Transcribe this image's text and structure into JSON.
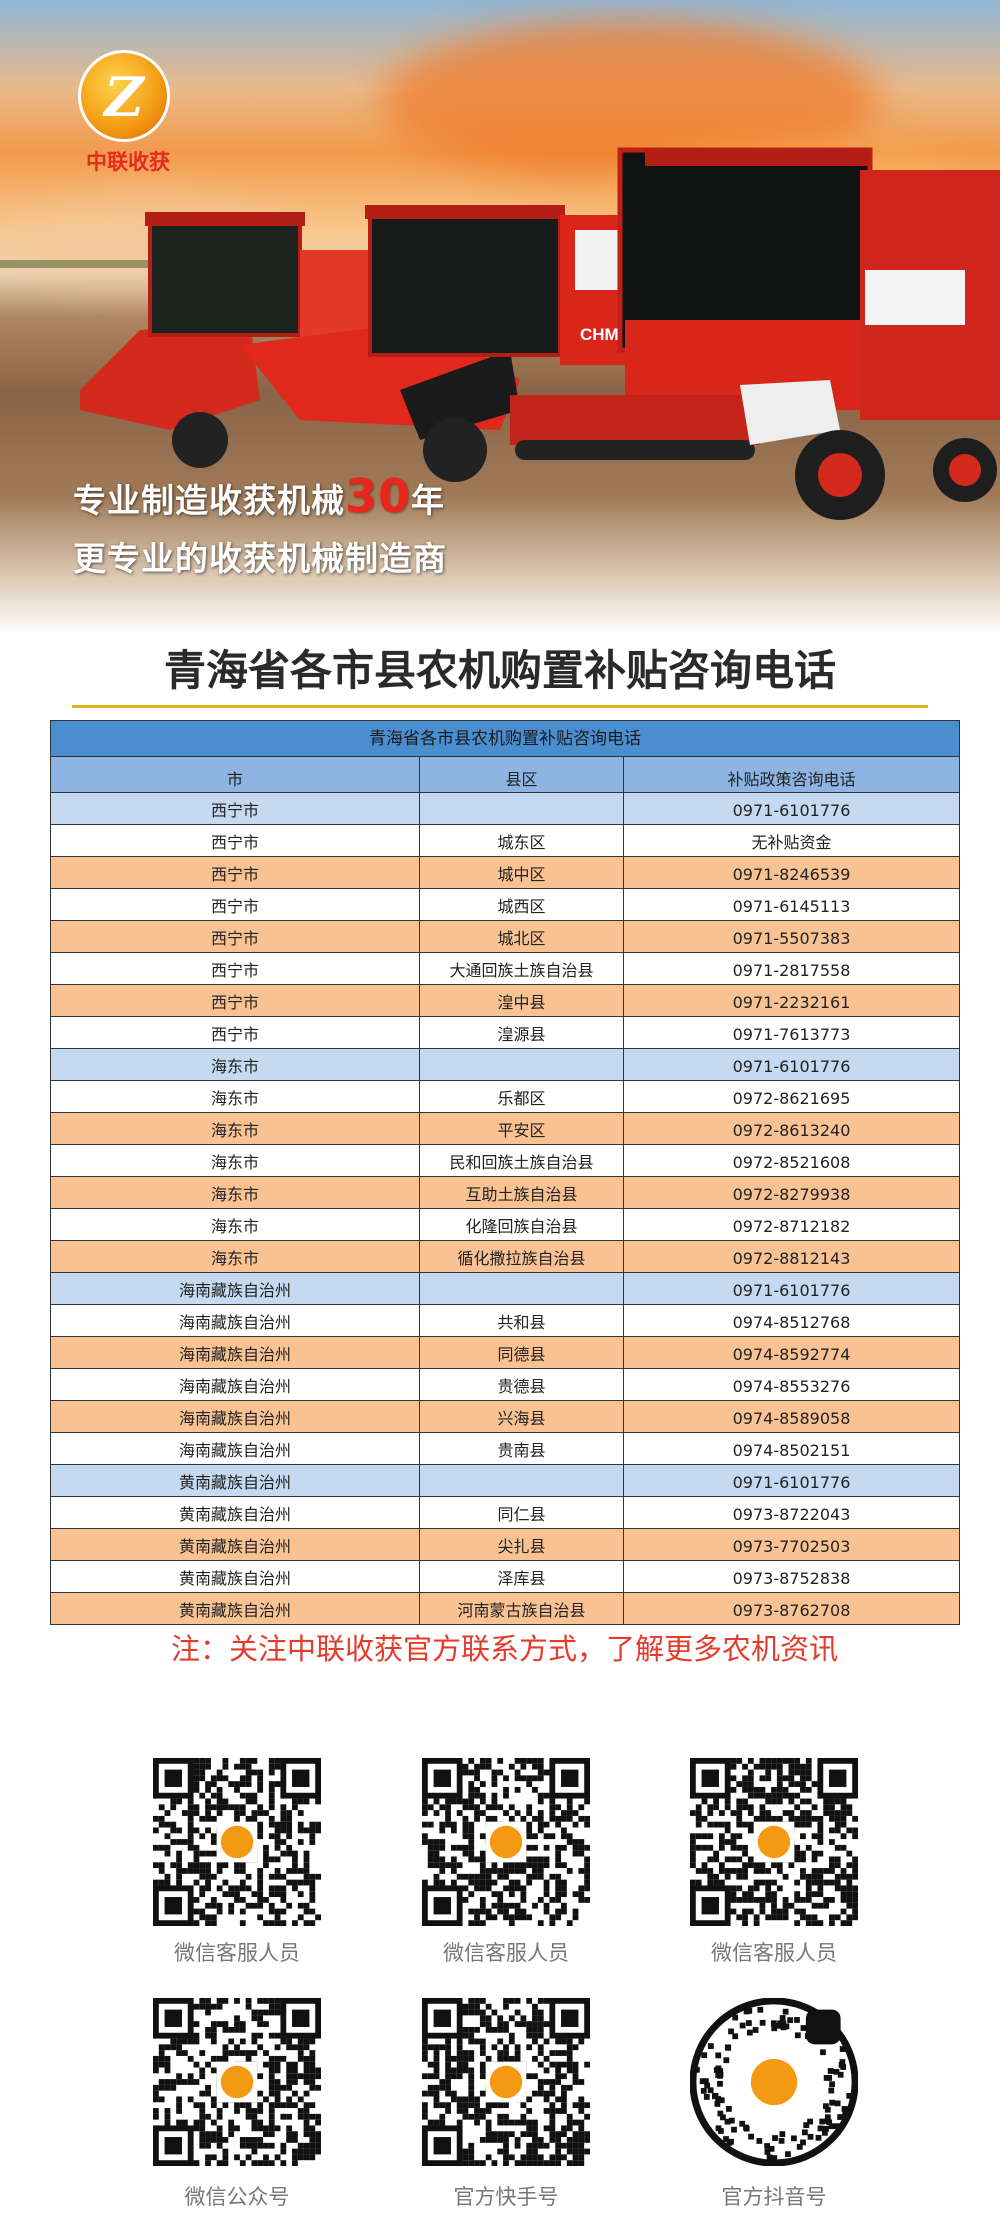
{
  "banner": {
    "logo_text": "中联收获",
    "slogan_line1_prefix": "专业制造收获机械",
    "slogan_line1_number": "30",
    "slogan_line1_suffix": "年",
    "slogan_line2": "更专业的收获机械制造商",
    "machine_label": "CHMC"
  },
  "page_title": "青海省各市县农机购置补贴咨询电话",
  "table": {
    "caption": "青海省各市县农机购置补贴咨询电话",
    "headers": [
      "市",
      "县区",
      "补贴政策咨询电话"
    ],
    "rows": [
      {
        "city": "西宁市",
        "county": "",
        "phone": "0971-6101776"
      },
      {
        "city": "西宁市",
        "county": "城东区",
        "phone": "无补贴资金"
      },
      {
        "city": "西宁市",
        "county": "城中区",
        "phone": "0971-8246539"
      },
      {
        "city": "西宁市",
        "county": "城西区",
        "phone": "0971-6145113"
      },
      {
        "city": "西宁市",
        "county": "城北区",
        "phone": "0971-5507383"
      },
      {
        "city": "西宁市",
        "county": "大通回族土族自治县",
        "phone": "0971-2817558"
      },
      {
        "city": "西宁市",
        "county": "湟中县",
        "phone": "0971-2232161"
      },
      {
        "city": "西宁市",
        "county": "湟源县",
        "phone": "0971-7613773"
      },
      {
        "city": "海东市",
        "county": "",
        "phone": "0971-6101776"
      },
      {
        "city": "海东市",
        "county": "乐都区",
        "phone": "0972-8621695"
      },
      {
        "city": "海东市",
        "county": "平安区",
        "phone": "0972-8613240"
      },
      {
        "city": "海东市",
        "county": "民和回族土族自治县",
        "phone": "0972-8521608"
      },
      {
        "city": "海东市",
        "county": "互助土族自治县",
        "phone": "0972-8279938"
      },
      {
        "city": "海东市",
        "county": "化隆回族自治县",
        "phone": "0972-8712182"
      },
      {
        "city": "海东市",
        "county": "循化撒拉族自治县",
        "phone": "0972-8812143"
      },
      {
        "city": "海南藏族自治州",
        "county": "",
        "phone": "0971-6101776"
      },
      {
        "city": "海南藏族自治州",
        "county": "共和县",
        "phone": "0974-8512768"
      },
      {
        "city": "海南藏族自治州",
        "county": "同德县",
        "phone": "0974-8592774"
      },
      {
        "city": "海南藏族自治州",
        "county": "贵德县",
        "phone": "0974-8553276"
      },
      {
        "city": "海南藏族自治州",
        "county": "兴海县",
        "phone": "0974-8589058"
      },
      {
        "city": "海南藏族自治州",
        "county": "贵南县",
        "phone": "0974-8502151"
      },
      {
        "city": "黄南藏族自治州",
        "county": "",
        "phone": "0971-6101776"
      },
      {
        "city": "黄南藏族自治州",
        "county": "同仁县",
        "phone": "0973-8722043"
      },
      {
        "city": "黄南藏族自治州",
        "county": "尖扎县",
        "phone": "0973-7702503"
      },
      {
        "city": "黄南藏族自治州",
        "county": "泽库县",
        "phone": "0973-8752838"
      },
      {
        "city": "黄南藏族自治州",
        "county": "河南蒙古族自治县",
        "phone": "0973-8762708"
      }
    ]
  },
  "note": "注：关注中联收获官方联系方式，了解更多农机资讯",
  "qr_codes": [
    {
      "label": "微信客服人员",
      "icon": "qr-code-icon"
    },
    {
      "label": "微信客服人员",
      "icon": "qr-code-icon"
    },
    {
      "label": "微信客服人员",
      "icon": "qr-code-icon"
    },
    {
      "label": "微信公众号",
      "icon": "qr-code-icon"
    },
    {
      "label": "官方快手号",
      "icon": "qr-code-icon"
    },
    {
      "label": "官方抖音号",
      "icon": "douyin-code-icon"
    }
  ],
  "colors": {
    "caption_bg": "#4a8ed0",
    "header_bg": "#8db4e2",
    "summary_row": "#c5d9f1",
    "alt_row": "#f8c293",
    "note_red": "#e53b2b",
    "accent_gold": "#e7b21a",
    "brand_red": "#e52a1f"
  }
}
